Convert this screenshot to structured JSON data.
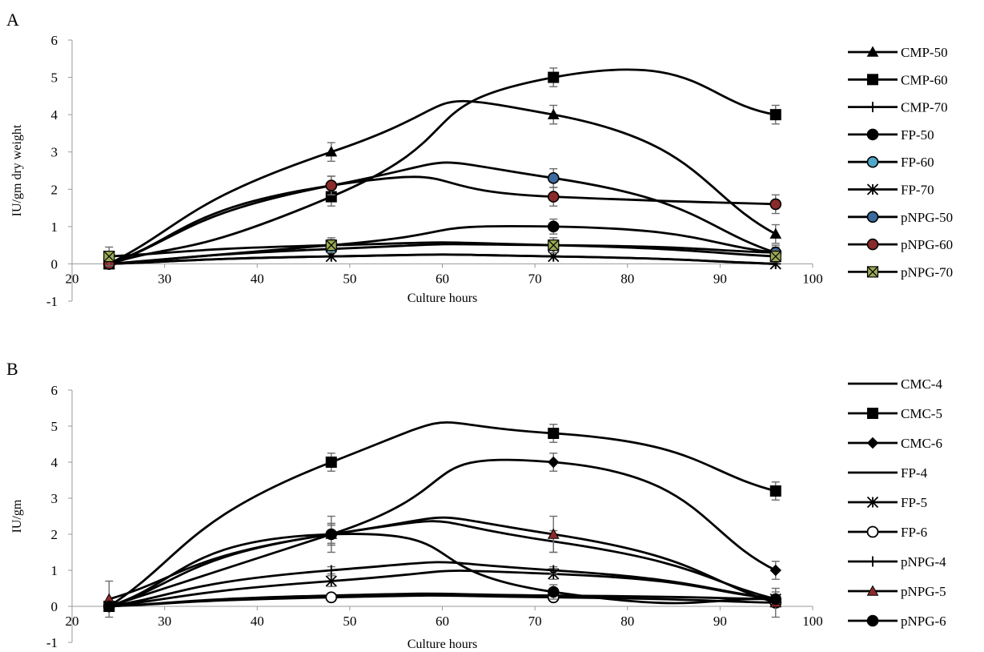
{
  "chart_data": [
    {
      "panel_label": "A",
      "type": "line",
      "xlabel": "Culture hours",
      "ylabel": "IU/gm dry weight",
      "xlim": [
        20,
        100
      ],
      "ylim": [
        -1,
        6
      ],
      "xticks": [
        "20",
        "30",
        "40",
        "50",
        "60",
        "70",
        "80",
        "90",
        "100"
      ],
      "yticks": [
        "-1",
        "0",
        "1",
        "2",
        "3",
        "4",
        "5",
        "6"
      ],
      "grid": false,
      "legend_position": "right",
      "x": [
        24,
        48,
        72,
        96
      ],
      "series": [
        {
          "name": "CMP-50",
          "marker": "triangle",
          "fill": "#000000",
          "values": [
            0,
            3,
            4,
            0.8
          ],
          "errors": [
            0,
            0.25,
            0.25,
            0.25
          ]
        },
        {
          "name": "CMP-60",
          "marker": "square",
          "fill": "#000000",
          "values": [
            0,
            1.8,
            5,
            4
          ],
          "errors": [
            0,
            0.25,
            0.25,
            0.25
          ]
        },
        {
          "name": "CMP-70",
          "marker": "plus",
          "fill": "#000000",
          "values": [
            0,
            0.2,
            0.2,
            0
          ],
          "errors": [
            0,
            0,
            0,
            0
          ]
        },
        {
          "name": "FP-50",
          "marker": "circle",
          "fill": "#000000",
          "values": [
            0,
            0.5,
            1,
            0.3
          ],
          "errors": [
            0,
            0.15,
            0.2,
            0.15
          ]
        },
        {
          "name": "FP-60",
          "marker": "circle",
          "fill": "#4fa9c8",
          "values": [
            0,
            0.4,
            0.5,
            0.3
          ],
          "errors": [
            0,
            0.1,
            0.1,
            0.1
          ]
        },
        {
          "name": "FP-70",
          "marker": "star",
          "fill": "#000000",
          "values": [
            0,
            0.2,
            0.2,
            0
          ],
          "errors": [
            0,
            0,
            0,
            0
          ]
        },
        {
          "name": "pNPG-50",
          "marker": "circle",
          "fill": "#3c6a9e",
          "values": [
            0,
            2.1,
            2.3,
            0.3
          ],
          "errors": [
            0,
            0.25,
            0.25,
            0.2
          ]
        },
        {
          "name": "pNPG-60",
          "marker": "circle",
          "fill": "#8b2a2a",
          "values": [
            0,
            2.1,
            1.8,
            1.6
          ],
          "errors": [
            0,
            0.25,
            0.25,
            0.25
          ]
        },
        {
          "name": "pNPG-70",
          "marker": "xsquare",
          "fill": "#9aab55",
          "values": [
            0.2,
            0.5,
            0.5,
            0.2
          ],
          "errors": [
            0.25,
            0.2,
            0.2,
            0.15
          ]
        }
      ]
    },
    {
      "panel_label": "B",
      "type": "line",
      "xlabel": "Culture hours",
      "ylabel": "IU/gm",
      "xlim": [
        20,
        100
      ],
      "ylim": [
        -1,
        6
      ],
      "xticks": [
        "20",
        "30",
        "40",
        "50",
        "60",
        "70",
        "80",
        "90",
        "100"
      ],
      "yticks": [
        "-1",
        "0",
        "1",
        "2",
        "3",
        "4",
        "5",
        "6"
      ],
      "grid": false,
      "legend_position": "right",
      "x": [
        24,
        48,
        72,
        96
      ],
      "series": [
        {
          "name": "CMC-4",
          "marker": "none",
          "fill": "#000000",
          "values": [
            0,
            2,
            1.8,
            0.2
          ],
          "errors": [
            0,
            0.3,
            0.3,
            0.2
          ]
        },
        {
          "name": "CMC-5",
          "marker": "square",
          "fill": "#000000",
          "values": [
            0,
            4,
            4.8,
            3.2
          ],
          "errors": [
            0,
            0.25,
            0.25,
            0.25
          ]
        },
        {
          "name": "CMC-6",
          "marker": "diamond",
          "fill": "#000000",
          "values": [
            0,
            2,
            4,
            1
          ],
          "errors": [
            0,
            0.25,
            0.25,
            0.25
          ]
        },
        {
          "name": "FP-4",
          "marker": "none",
          "fill": "#000000",
          "values": [
            0,
            0.3,
            0.3,
            0.2
          ],
          "errors": [
            0,
            0,
            0,
            0
          ]
        },
        {
          "name": "FP-5",
          "marker": "star",
          "fill": "#000000",
          "values": [
            0,
            0.7,
            0.9,
            0.2
          ],
          "errors": [
            0,
            0.15,
            0.15,
            0.1
          ]
        },
        {
          "name": "FP-6",
          "marker": "ocircle",
          "fill": "#ffffff",
          "values": [
            0,
            0.25,
            0.25,
            0.1
          ],
          "errors": [
            0,
            0.05,
            0.05,
            0.05
          ]
        },
        {
          "name": "pNPG-4",
          "marker": "plus",
          "fill": "#000000",
          "values": [
            0,
            1,
            1,
            0.2
          ],
          "errors": [
            0,
            0.1,
            0.1,
            0.1
          ]
        },
        {
          "name": "pNPG-5",
          "marker": "triangle",
          "fill": "#8b2a2a",
          "values": [
            0.2,
            2,
            2,
            0.1
          ],
          "errors": [
            0.5,
            0.5,
            0.5,
            0.4
          ]
        },
        {
          "name": "pNPG-6",
          "marker": "circle",
          "fill": "#000000",
          "values": [
            0,
            2,
            0.4,
            0.2
          ],
          "errors": [
            0,
            0.3,
            0.2,
            0.1
          ]
        }
      ]
    }
  ]
}
